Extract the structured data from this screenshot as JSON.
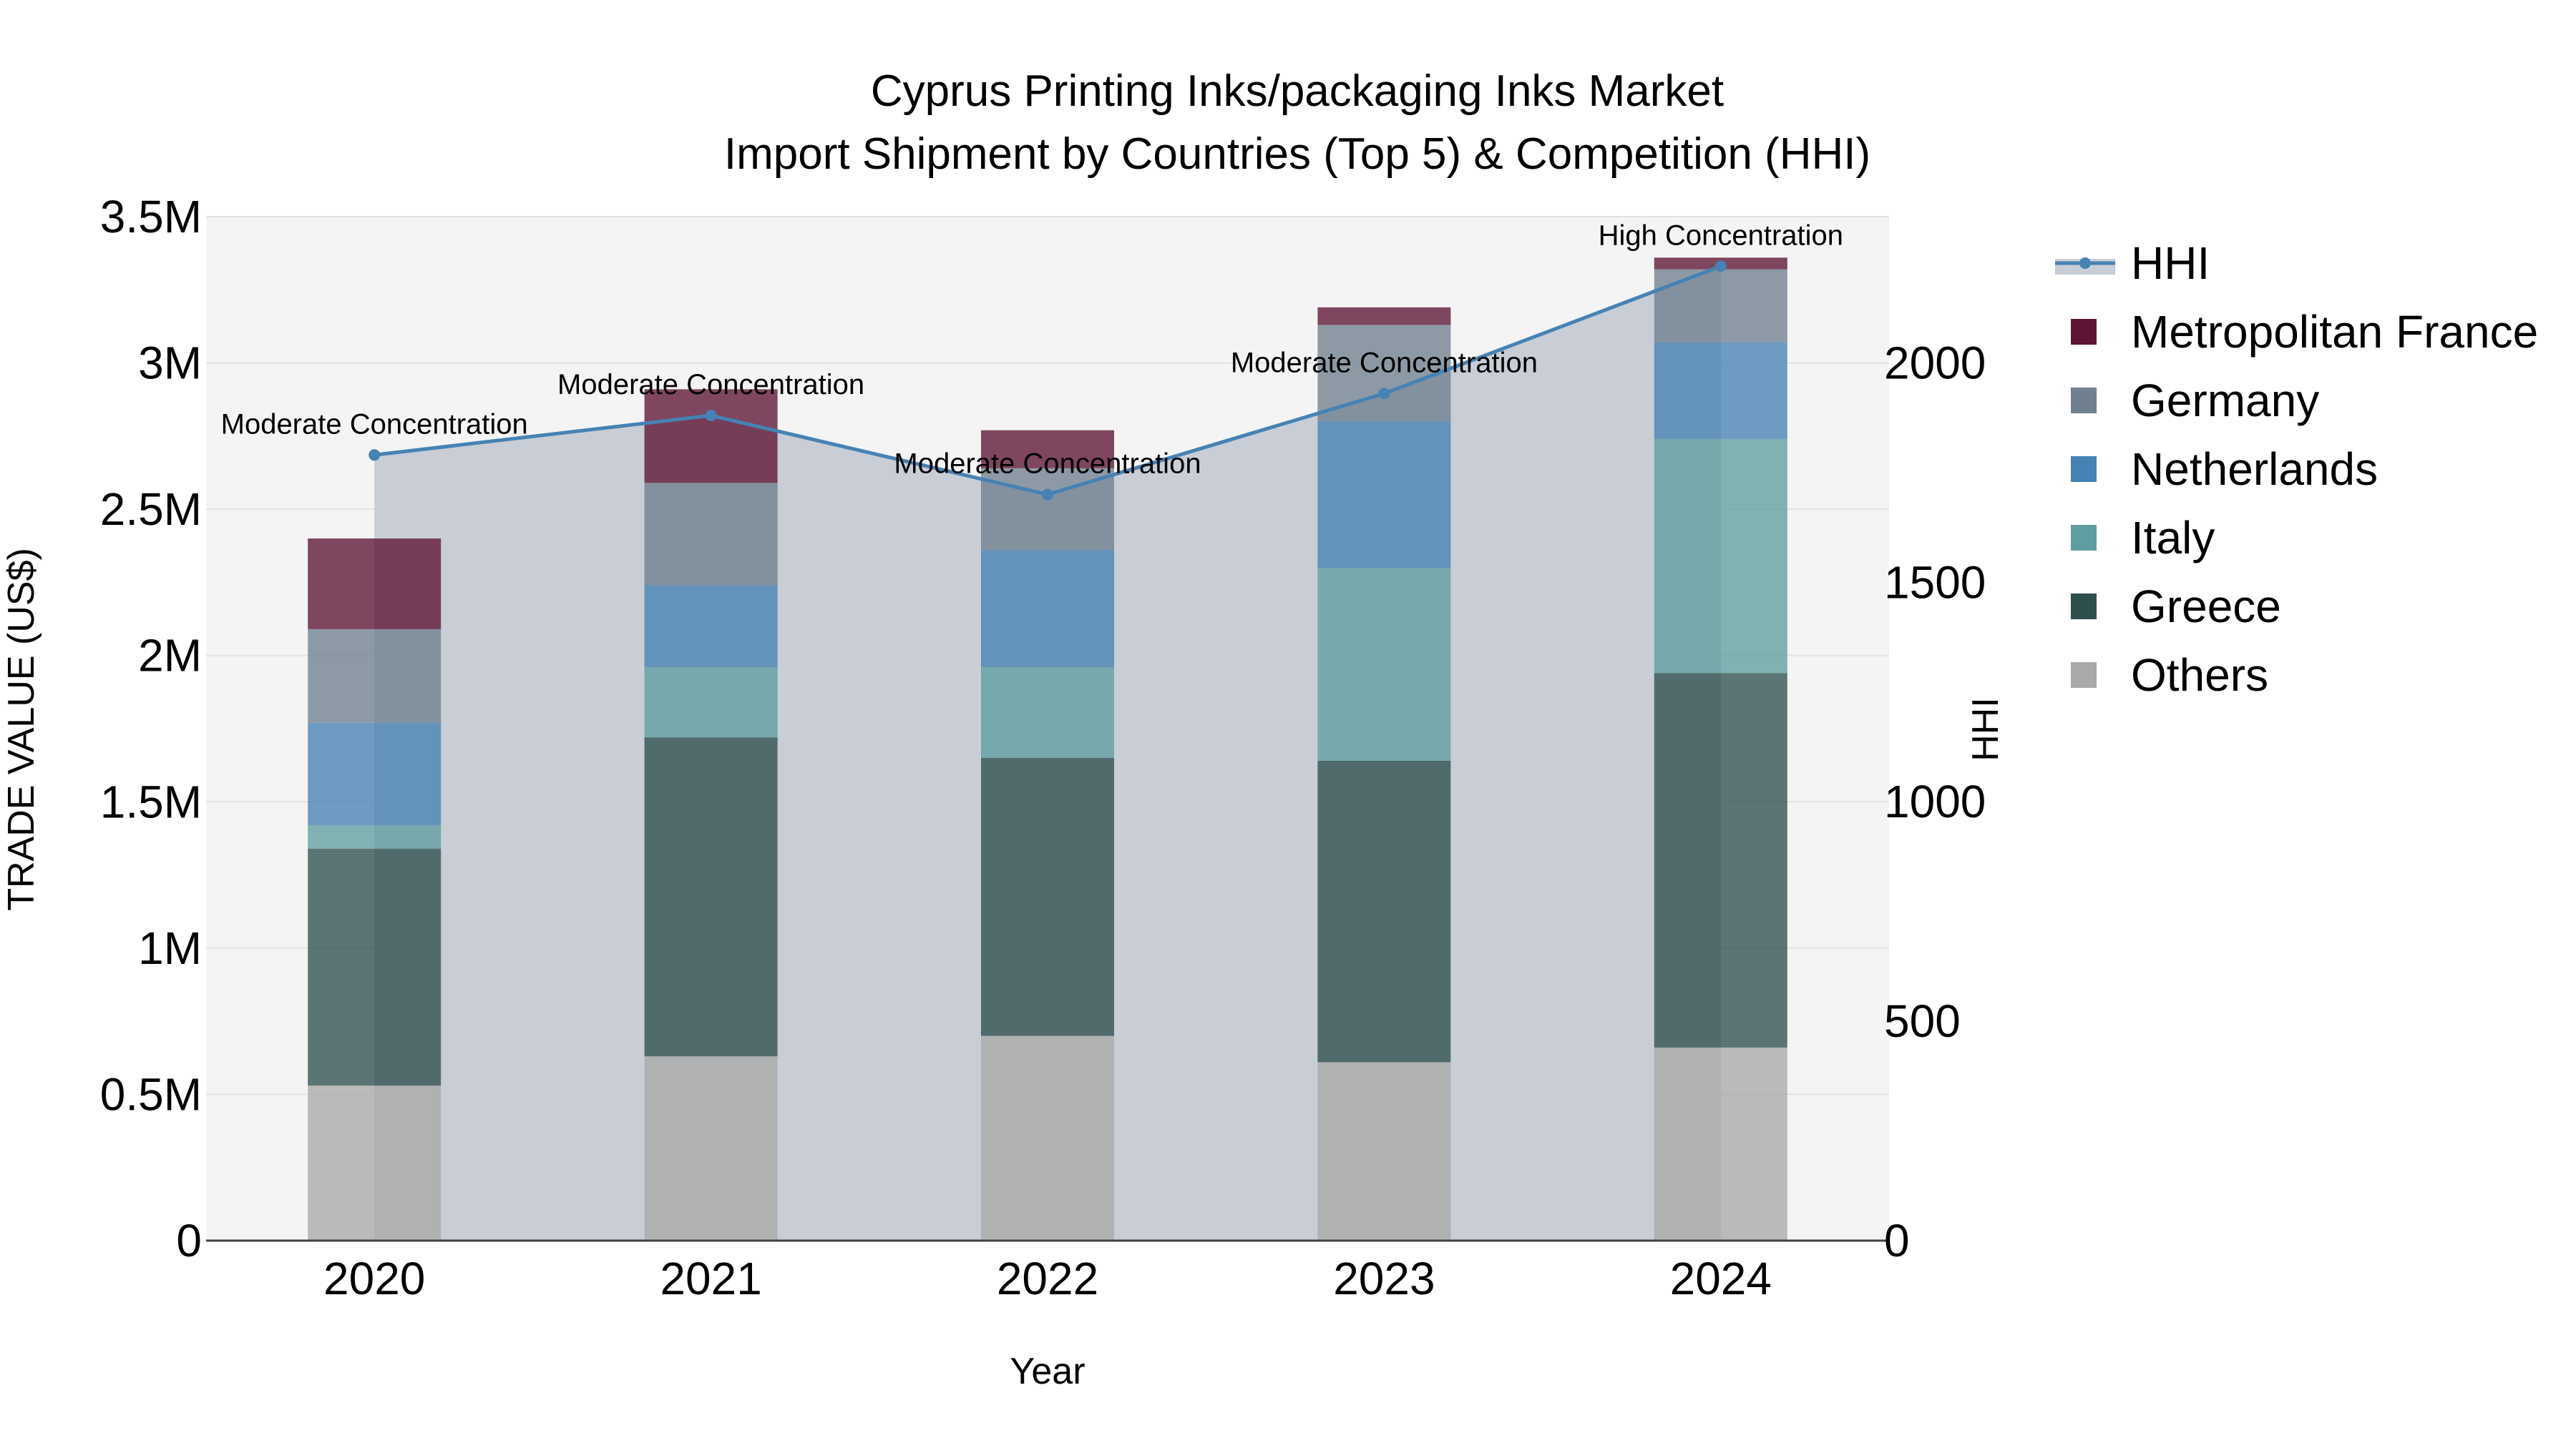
{
  "chart_data": {
    "type": "bar",
    "title_line1": "Cyprus Printing Inks/packaging Inks Market",
    "title_line2": "Import Shipment by Countries (Top 5) & Competition (HHI)",
    "xlabel": "Year",
    "ylabel": "TRADE VALUE (US$)",
    "y2label": "HHI",
    "categories": [
      "2020",
      "2021",
      "2022",
      "2023",
      "2024"
    ],
    "ylim": [
      0,
      3500000
    ],
    "y2lim": [
      0,
      2333
    ],
    "y_ticks": [
      {
        "value": 0,
        "label": "0"
      },
      {
        "value": 500000,
        "label": "0.5M"
      },
      {
        "value": 1000000,
        "label": "1M"
      },
      {
        "value": 1500000,
        "label": "1.5M"
      },
      {
        "value": 2000000,
        "label": "2M"
      },
      {
        "value": 2500000,
        "label": "2.5M"
      },
      {
        "value": 3000000,
        "label": "3M"
      },
      {
        "value": 3500000,
        "label": "3.5M"
      }
    ],
    "y2_ticks": [
      {
        "value": 0,
        "label": "0"
      },
      {
        "value": 500,
        "label": "500"
      },
      {
        "value": 1000,
        "label": "1000"
      },
      {
        "value": 1500,
        "label": "1500"
      },
      {
        "value": 2000,
        "label": "2000"
      }
    ],
    "series": [
      {
        "name": "Others",
        "color": "#a9a9a9",
        "values": [
          530000,
          630000,
          700000,
          610000,
          660000
        ]
      },
      {
        "name": "Greece",
        "color": "#2f4f4f",
        "values": [
          810000,
          1090000,
          950000,
          1030000,
          1280000
        ]
      },
      {
        "name": "Italy",
        "color": "#5f9ea0",
        "values": [
          80000,
          240000,
          310000,
          660000,
          800000
        ]
      },
      {
        "name": "Netherlands",
        "color": "#4682b4",
        "values": [
          350000,
          280000,
          400000,
          500000,
          330000
        ]
      },
      {
        "name": "Germany",
        "color": "#708090",
        "values": [
          320000,
          350000,
          280000,
          330000,
          250000
        ]
      },
      {
        "name": "Metropolitan France",
        "color": "#5e1434",
        "values": [
          310000,
          320000,
          130000,
          60000,
          40000
        ]
      }
    ],
    "hhi": {
      "name": "HHI",
      "color": "#4682b4",
      "fill_color": "#c8cdd6",
      "values": [
        1790,
        1880,
        1700,
        1930,
        2220
      ],
      "annotations": [
        "Moderate Concentration",
        "Moderate Concentration",
        "Moderate Concentration",
        "Moderate Concentration",
        "High Concentration"
      ]
    },
    "legend_order": [
      "HHI",
      "Metropolitan France",
      "Germany",
      "Netherlands",
      "Italy",
      "Greece",
      "Others"
    ],
    "legend_position": "right"
  }
}
